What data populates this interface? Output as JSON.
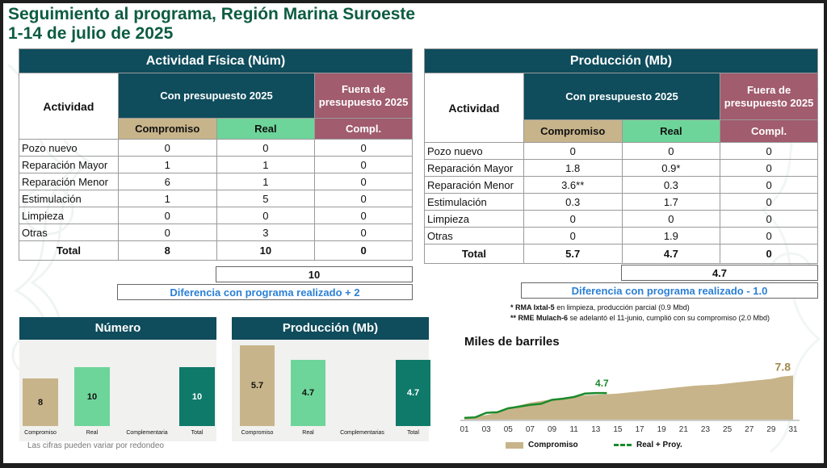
{
  "title": {
    "line1": "Seguimiento al programa, Región Marina Suroeste",
    "line2": "1-14 de julio de 2025"
  },
  "left_table": {
    "header": "Actividad Física (Núm)",
    "activity_label": "Actividad",
    "budget_label": "Con presupuesto 2025",
    "outside_label": "Fuera de presupuesto 2025",
    "compromiso_label": "Compromiso",
    "real_label": "Real",
    "compl_label": "Compl.",
    "rows": [
      {
        "name": "Pozo nuevo",
        "compromiso": "0",
        "real": "0",
        "compl": "0"
      },
      {
        "name": "Reparación Mayor",
        "compromiso": "1",
        "real": "1",
        "compl": "0"
      },
      {
        "name": "Reparación Menor",
        "compromiso": "6",
        "real": "1",
        "compl": "0"
      },
      {
        "name": "Estimulación",
        "compromiso": "1",
        "real": "5",
        "compl": "0"
      },
      {
        "name": "Limpieza",
        "compromiso": "0",
        "real": "0",
        "compl": "0"
      },
      {
        "name": "Otras",
        "compromiso": "0",
        "real": "3",
        "compl": "0"
      }
    ],
    "total": {
      "name": "Total",
      "compromiso": "8",
      "real": "10",
      "compl": "0"
    },
    "sum_box": "10",
    "difference": "Diferencia con programa realizado + 2"
  },
  "right_table": {
    "header": "Producción (Mb)",
    "activity_label": "Actividad",
    "budget_label": "Con presupuesto 2025",
    "outside_label": "Fuera de presupuesto 2025",
    "compromiso_label": "Compromiso",
    "real_label": "Real",
    "compl_label": "Compl.",
    "rows": [
      {
        "name": "Pozo nuevo",
        "compromiso": "0",
        "real": "0",
        "compl": "0"
      },
      {
        "name": "Reparación Mayor",
        "compromiso": "1.8",
        "real": "0.9*",
        "compl": "0"
      },
      {
        "name": "Reparación Menor",
        "compromiso": "3.6**",
        "real": "0.3",
        "compl": "0"
      },
      {
        "name": "Estimulación",
        "compromiso": "0.3",
        "real": "1.7",
        "compl": "0"
      },
      {
        "name": "Limpieza",
        "compromiso": "0",
        "real": "0",
        "compl": "0"
      },
      {
        "name": "Otras",
        "compromiso": "0",
        "real": "1.9",
        "compl": "0"
      }
    ],
    "total": {
      "name": "Total",
      "compromiso": "5.7",
      "real": "4.7",
      "compl": "0"
    },
    "sum_box": "4.7",
    "difference": "Diferencia con programa realizado - 1.0"
  },
  "notes": {
    "n1_bold": "* RMA Ixtal-5",
    "n1_text": " en limpieza, producción parcial (0.9 Mbd)",
    "n2_bold": "** RME Mulach-6",
    "n2_text": " se adelantó el 11-junio, cumplió con su compromiso (2.0 Mbd)"
  },
  "footnote": "Las cifras pueden variar por redondeo",
  "colors": {
    "header": "#0f4c5c",
    "compromiso": "#c8b48a",
    "real": "#6dd59a",
    "complementaria": "#0f7a6a",
    "fuera": "#a15c6e",
    "title": "#0d5c42"
  },
  "chart_data": [
    {
      "type": "bar",
      "title": "Número",
      "categories": [
        "Compromiso",
        "Real",
        "Complementaria",
        "Total"
      ],
      "values": [
        8,
        10,
        0,
        10
      ],
      "labels": [
        "8",
        "10",
        "",
        "10"
      ],
      "ylim": [
        0,
        12
      ]
    },
    {
      "type": "bar",
      "title": "Producción (Mb)",
      "categories": [
        "Compromiso",
        "Real",
        "Complementarias",
        "Total"
      ],
      "values": [
        5.7,
        4.7,
        0,
        4.7
      ],
      "labels": [
        "5.7",
        "4.7",
        "",
        "4.7"
      ],
      "ylim": [
        0,
        5.7
      ]
    },
    {
      "type": "area",
      "title": "Miles de barriles",
      "x_ticks": [
        "01",
        "03",
        "05",
        "07",
        "09",
        "11",
        "13",
        "15",
        "17",
        "19",
        "21",
        "23",
        "25",
        "27",
        "29",
        "31"
      ],
      "xlim": [
        1,
        31
      ],
      "ylim": [
        0,
        8
      ],
      "series": [
        {
          "name": "Compromiso",
          "type": "area",
          "x": [
            1,
            2,
            3,
            4,
            5,
            6,
            7,
            8,
            9,
            10,
            11,
            12,
            13,
            14,
            15,
            16,
            17,
            18,
            19,
            20,
            21,
            22,
            23,
            24,
            25,
            26,
            27,
            28,
            29,
            30,
            31
          ],
          "y": [
            0.3,
            0.5,
            0.8,
            1.2,
            1.8,
            2.5,
            3.0,
            3.3,
            3.6,
            3.9,
            4.1,
            4.3,
            4.4,
            4.5,
            4.6,
            4.8,
            5.0,
            5.2,
            5.4,
            5.6,
            5.8,
            6.0,
            6.1,
            6.2,
            6.4,
            6.6,
            6.8,
            7.0,
            7.2,
            7.6,
            7.8
          ],
          "end_label": "7.8"
        },
        {
          "name": "Real + Proy.",
          "type": "line",
          "x": [
            1,
            2,
            3,
            4,
            5,
            6,
            7,
            8,
            9,
            10,
            11,
            12,
            13,
            14
          ],
          "y": [
            0.3,
            0.4,
            1.2,
            1.3,
            2.0,
            2.3,
            2.6,
            2.8,
            3.5,
            3.7,
            4.0,
            4.6,
            4.7,
            4.7
          ],
          "end_label": "4.7"
        }
      ]
    }
  ]
}
